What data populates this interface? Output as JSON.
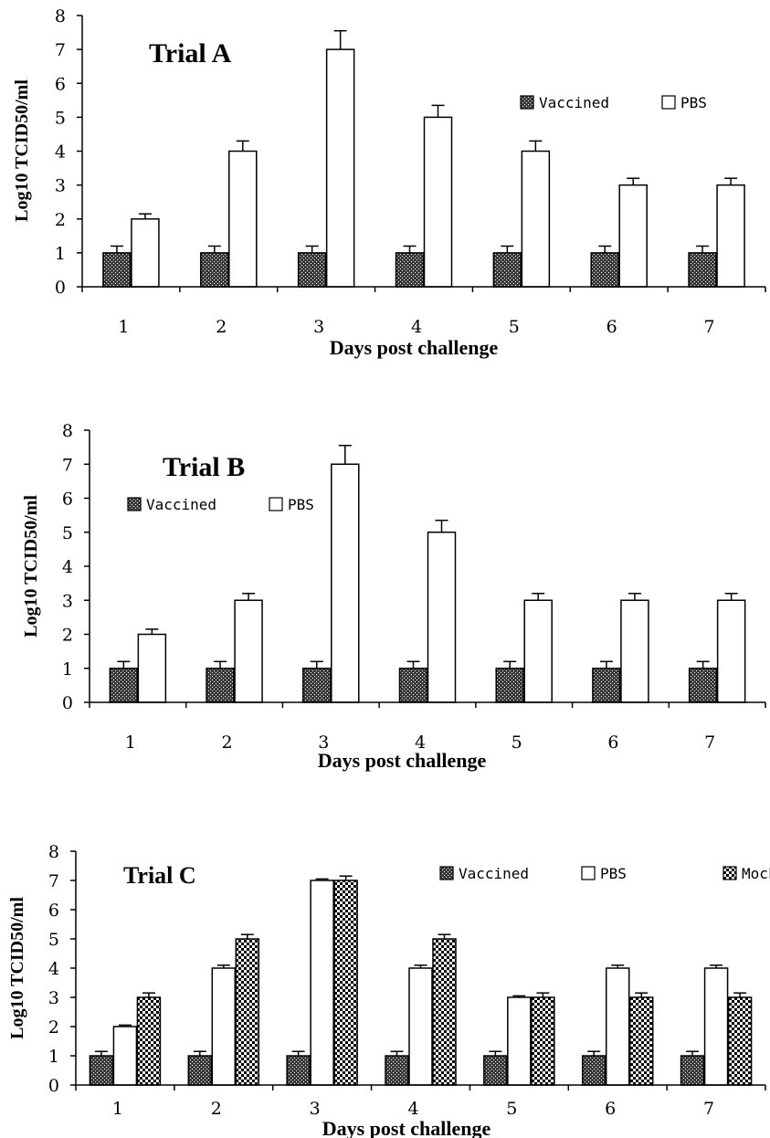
{
  "chart_data": [
    {
      "type": "bar",
      "title": "Trial A",
      "xlabel": "Days post challenge",
      "ylabel": "Log10 TCID50/ml",
      "ylim": [
        0,
        8
      ],
      "yticks": [
        "0",
        "1",
        "2",
        "3",
        "4",
        "5",
        "6",
        "7",
        "8"
      ],
      "categories": [
        "1",
        "2",
        "3",
        "4",
        "5",
        "6",
        "7"
      ],
      "legend_position": "right",
      "series": [
        {
          "name": "Vaccined",
          "pattern": "dark-crosshatch",
          "values": [
            1,
            1,
            1,
            1,
            1,
            1,
            1
          ],
          "errors": [
            0.2,
            0.2,
            0.2,
            0.2,
            0.2,
            0.2,
            0.2
          ]
        },
        {
          "name": "PBS",
          "pattern": "white",
          "values": [
            2,
            4,
            7,
            5,
            4,
            3,
            3
          ],
          "errors": [
            0.15,
            0.3,
            0.55,
            0.35,
            0.3,
            0.2,
            0.2
          ]
        }
      ]
    },
    {
      "type": "bar",
      "title": "Trial B",
      "xlabel": "Days post challenge",
      "ylabel": "Log10 TCID50/ml",
      "ylim": [
        0,
        8
      ],
      "yticks": [
        "0",
        "1",
        "2",
        "3",
        "4",
        "5",
        "6",
        "7",
        "8"
      ],
      "categories": [
        "1",
        "2",
        "3",
        "4",
        "5",
        "6",
        "7"
      ],
      "legend_position": "left",
      "series": [
        {
          "name": "Vaccined",
          "pattern": "dark-crosshatch",
          "values": [
            1,
            1,
            1,
            1,
            1,
            1,
            1
          ],
          "errors": [
            0.2,
            0.2,
            0.2,
            0.2,
            0.2,
            0.2,
            0.2
          ]
        },
        {
          "name": "PBS",
          "pattern": "white",
          "values": [
            2,
            3,
            7,
            5,
            3,
            3,
            3
          ],
          "errors": [
            0.15,
            0.2,
            0.55,
            0.35,
            0.2,
            0.2,
            0.2
          ]
        }
      ]
    },
    {
      "type": "bar",
      "title": "Trial C",
      "xlabel": "Days post challenge",
      "ylabel": "Log10 TCID50/ml",
      "ylim": [
        0,
        8
      ],
      "yticks": [
        "0",
        "1",
        "2",
        "3",
        "4",
        "5",
        "6",
        "7",
        "8"
      ],
      "categories": [
        "1",
        "2",
        "3",
        "4",
        "5",
        "6",
        "7"
      ],
      "legend_position": "top-right",
      "series": [
        {
          "name": "Vaccined",
          "pattern": "dark-crosshatch",
          "values": [
            1,
            1,
            1,
            1,
            1,
            1,
            1
          ],
          "errors": [
            0.15,
            0.15,
            0.15,
            0.15,
            0.15,
            0.15,
            0.15
          ]
        },
        {
          "name": "PBS",
          "pattern": "white",
          "values": [
            2,
            4,
            7,
            4,
            3,
            4,
            4
          ],
          "errors": [
            0.05,
            0.1,
            0.05,
            0.1,
            0.05,
            0.1,
            0.1
          ]
        },
        {
          "name": "Mock",
          "pattern": "checker",
          "values": [
            3,
            5,
            7,
            5,
            3,
            3,
            3
          ],
          "errors": [
            0.15,
            0.15,
            0.15,
            0.15,
            0.15,
            0.15,
            0.15
          ]
        }
      ]
    }
  ]
}
